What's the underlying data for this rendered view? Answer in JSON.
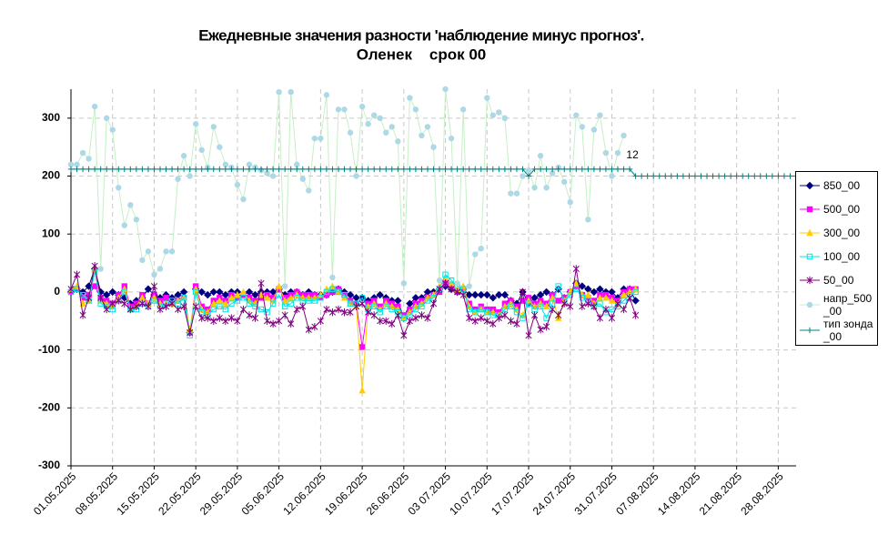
{
  "chart_data": {
    "type": "line",
    "title": "Ежедневные значения разности 'наблюдение минус прогноз'.",
    "subtitle": "Оленек    срок 00",
    "annotation": "12",
    "categories": [
      "01.05.2025",
      null,
      null,
      null,
      null,
      null,
      null,
      "08.05.2025",
      null,
      null,
      null,
      null,
      null,
      null,
      "15.05.2025",
      null,
      null,
      null,
      null,
      null,
      null,
      "22.05.2025",
      null,
      null,
      null,
      null,
      null,
      null,
      "29.05.2025",
      null,
      null,
      null,
      null,
      null,
      null,
      "05.06.2025",
      null,
      null,
      null,
      null,
      null,
      null,
      "12.06.2025",
      null,
      null,
      null,
      null,
      null,
      null,
      "19.06.2025",
      null,
      null,
      null,
      null,
      null,
      null,
      "26.06.2025",
      null,
      null,
      null,
      null,
      null,
      null,
      "03 07.2025",
      null,
      null,
      null,
      null,
      null,
      null,
      "10.07.2025",
      null,
      null,
      null,
      null,
      null,
      null,
      "17.07.2025",
      null,
      null,
      null,
      null,
      null,
      null,
      "24.07.2025",
      null,
      null,
      null,
      null,
      null,
      null,
      "31.07.2025",
      null,
      null,
      null,
      null,
      null,
      null,
      "07.08.2025",
      null,
      null,
      null,
      null,
      null,
      null,
      "14.08.2025",
      null,
      null,
      null,
      null,
      null,
      null,
      "21.08.2025",
      null,
      null,
      null,
      null,
      null,
      null,
      "28.08.2025",
      null,
      null,
      null
    ],
    "ylim": [
      -300,
      350
    ],
    "yticks": [
      -300,
      -200,
      -100,
      0,
      100,
      200,
      300
    ],
    "grid": true,
    "series": [
      {
        "name": "850_00",
        "color": "#000080",
        "marker": "diamond",
        "values": [
          0,
          5,
          0,
          10,
          40,
          0,
          -5,
          0,
          -5,
          -10,
          -20,
          -15,
          -10,
          5,
          -5,
          -10,
          -5,
          -10,
          -5,
          0,
          -70,
          5,
          0,
          -5,
          0,
          0,
          -5,
          0,
          0,
          -5,
          0,
          -5,
          0,
          0,
          0,
          5,
          -5,
          0,
          0,
          -5,
          0,
          -5,
          -5,
          -5,
          0,
          5,
          0,
          -5,
          -10,
          -10,
          -15,
          -10,
          -5,
          -10,
          -15,
          -15,
          -45,
          -20,
          -10,
          -10,
          0,
          0,
          5,
          10,
          5,
          0,
          5,
          -5,
          -5,
          -5,
          -5,
          -10,
          -5,
          -5,
          -15,
          -20,
          0,
          -20,
          -10,
          -5,
          0,
          -5,
          5,
          -10,
          0,
          15,
          10,
          5,
          0,
          5,
          0,
          0,
          -10,
          5,
          5,
          -15,
          null,
          null,
          null,
          null,
          null,
          null,
          null,
          null,
          null,
          null,
          null,
          null,
          null,
          null,
          null,
          null,
          null,
          null,
          null,
          null,
          null,
          null,
          null,
          null,
          null,
          null,
          null
        ]
      },
      {
        "name": "500_00",
        "color": "#ff00ff",
        "marker": "square",
        "values": [
          0,
          5,
          -10,
          -5,
          10,
          -10,
          -15,
          -20,
          -5,
          10,
          -25,
          -20,
          -5,
          -20,
          -5,
          -15,
          -10,
          -20,
          -15,
          -10,
          -70,
          10,
          -25,
          -30,
          -15,
          -10,
          -15,
          -5,
          -10,
          -5,
          -10,
          -15,
          -10,
          -5,
          -10,
          5,
          -10,
          -5,
          0,
          -5,
          -5,
          -5,
          -10,
          -5,
          0,
          5,
          -5,
          -15,
          -20,
          -95,
          -20,
          -15,
          -25,
          -15,
          -20,
          -25,
          -40,
          -30,
          -20,
          -15,
          -10,
          -5,
          0,
          15,
          10,
          0,
          5,
          -20,
          -30,
          -25,
          -30,
          -30,
          -35,
          -20,
          -15,
          -25,
          -15,
          -10,
          -20,
          -15,
          -20,
          -5,
          -15,
          -10,
          0,
          10,
          -5,
          -10,
          -15,
          -5,
          -5,
          -10,
          -15,
          0,
          5,
          5,
          null,
          null,
          null,
          null,
          null,
          null,
          null,
          null,
          null,
          null,
          null,
          null,
          null,
          null,
          null,
          null,
          null,
          null,
          null,
          null,
          null,
          null,
          null,
          null,
          null,
          null,
          null
        ]
      },
      {
        "name": "300_00",
        "color": "#ffcc00",
        "marker": "triangle",
        "values": [
          5,
          10,
          -20,
          -15,
          40,
          -15,
          -20,
          -25,
          -10,
          5,
          -30,
          -25,
          -10,
          -20,
          -10,
          -20,
          -20,
          -20,
          -15,
          -10,
          -65,
          5,
          -30,
          -35,
          -20,
          -15,
          -20,
          -10,
          -5,
          0,
          -15,
          -20,
          -5,
          -10,
          -15,
          10,
          -15,
          -10,
          -5,
          -10,
          -10,
          -10,
          -5,
          5,
          10,
          0,
          -10,
          -20,
          -25,
          -170,
          -25,
          -20,
          -30,
          -20,
          -25,
          -30,
          -45,
          -35,
          -25,
          -20,
          -10,
          -5,
          10,
          25,
          15,
          5,
          10,
          -25,
          -35,
          -30,
          -35,
          -35,
          -40,
          -25,
          -20,
          -30,
          -40,
          -15,
          -25,
          -20,
          -25,
          -10,
          -45,
          -15,
          0,
          15,
          -5,
          -5,
          -20,
          -10,
          -10,
          -15,
          -20,
          -5,
          0,
          5,
          null,
          null,
          null,
          null,
          null,
          null,
          null,
          null,
          null,
          null,
          null,
          null,
          null,
          null,
          null,
          null,
          null,
          null,
          null,
          null,
          null,
          null,
          null,
          null,
          null,
          null,
          null
        ]
      },
      {
        "name": "100_00",
        "color": "#00e5e5",
        "marker": "osquare",
        "values": [
          0,
          5,
          -5,
          -15,
          35,
          -20,
          -25,
          -30,
          -15,
          0,
          -30,
          -30,
          -20,
          -25,
          -15,
          -25,
          -20,
          -15,
          -20,
          -10,
          -75,
          0,
          -35,
          -40,
          -30,
          -25,
          -30,
          -20,
          -15,
          -10,
          -20,
          -25,
          -30,
          -35,
          -20,
          -5,
          -25,
          -20,
          -10,
          -15,
          -15,
          -15,
          -10,
          0,
          5,
          0,
          -5,
          -20,
          -20,
          -10,
          -30,
          -25,
          -35,
          -25,
          -30,
          -35,
          -45,
          -40,
          -30,
          -25,
          -15,
          -10,
          5,
          30,
          20,
          10,
          5,
          -30,
          -35,
          -30,
          -35,
          -40,
          -40,
          -30,
          -25,
          -35,
          -45,
          -20,
          -30,
          -25,
          -45,
          -20,
          10,
          -15,
          -5,
          5,
          -10,
          -15,
          -25,
          -20,
          -35,
          -30,
          -25,
          -15,
          -5,
          0,
          null,
          null,
          null,
          null,
          null,
          null,
          null,
          null,
          null,
          null,
          null,
          null,
          null,
          null,
          null,
          null,
          null,
          null,
          null,
          null,
          null,
          null,
          null,
          null,
          null,
          null,
          null
        ]
      },
      {
        "name": "50_00",
        "color": "#800080",
        "marker": "star",
        "values": [
          5,
          30,
          -40,
          -10,
          45,
          -10,
          -30,
          -20,
          -15,
          -20,
          -30,
          -25,
          -20,
          -25,
          10,
          -30,
          -25,
          -20,
          -30,
          -25,
          -70,
          -25,
          -45,
          -45,
          -50,
          -45,
          -50,
          -45,
          -50,
          -30,
          -40,
          -45,
          15,
          -50,
          -55,
          -50,
          -40,
          -55,
          -30,
          -25,
          -65,
          -60,
          -50,
          -30,
          -35,
          -30,
          -35,
          -35,
          -25,
          -20,
          -35,
          -40,
          -50,
          -50,
          -55,
          -40,
          -75,
          -50,
          -45,
          -40,
          -45,
          -20,
          5,
          15,
          5,
          0,
          -5,
          -45,
          -50,
          -45,
          -50,
          -55,
          -45,
          -40,
          -50,
          -55,
          0,
          -75,
          -40,
          -65,
          -60,
          -30,
          -40,
          -20,
          -25,
          40,
          -25,
          -20,
          -25,
          -45,
          -30,
          -45,
          -20,
          -30,
          -10,
          -40,
          null,
          null,
          null,
          null,
          null,
          null,
          null,
          null,
          null,
          null,
          null,
          null,
          null,
          null,
          null,
          null,
          null,
          null,
          null,
          null,
          null,
          null,
          null,
          null,
          null,
          null,
          null
        ]
      },
      {
        "name": "напр_500_00",
        "color": "#add8e6",
        "line_color": "#c6efc6",
        "marker": "circle",
        "values": [
          220,
          220,
          240,
          230,
          320,
          40,
          300,
          280,
          180,
          115,
          150,
          125,
          55,
          70,
          30,
          40,
          70,
          70,
          195,
          235,
          200,
          290,
          245,
          215,
          285,
          250,
          220,
          215,
          185,
          160,
          220,
          215,
          210,
          205,
          200,
          345,
          10,
          345,
          220,
          195,
          175,
          265,
          265,
          340,
          25,
          315,
          315,
          275,
          200,
          320,
          290,
          305,
          300,
          275,
          285,
          260,
          15,
          335,
          315,
          270,
          285,
          250,
          20,
          350,
          265,
          15,
          315,
          10,
          65,
          75,
          335,
          305,
          310,
          300,
          170,
          170,
          200,
          210,
          180,
          235,
          180,
          205,
          215,
          190,
          155,
          305,
          285,
          125,
          280,
          305,
          240,
          200,
          240,
          270,
          null,
          null,
          null,
          null,
          null,
          null,
          null,
          null,
          null,
          null,
          null,
          null,
          null,
          null,
          null,
          null,
          null,
          null,
          null,
          null,
          null,
          null,
          null,
          null,
          null,
          null,
          null,
          null,
          null
        ]
      },
      {
        "name": "тип зонда_00",
        "color": "#008080",
        "marker": "plus",
        "values": [
          212,
          212,
          212,
          212,
          212,
          212,
          212,
          212,
          212,
          212,
          212,
          212,
          212,
          212,
          212,
          212,
          212,
          212,
          212,
          212,
          212,
          212,
          212,
          212,
          212,
          212,
          212,
          212,
          212,
          212,
          212,
          212,
          212,
          212,
          212,
          212,
          212,
          212,
          212,
          212,
          212,
          212,
          212,
          212,
          212,
          212,
          212,
          212,
          212,
          212,
          212,
          212,
          212,
          212,
          212,
          212,
          212,
          212,
          212,
          212,
          212,
          212,
          212,
          212,
          212,
          212,
          212,
          212,
          212,
          212,
          212,
          212,
          212,
          212,
          212,
          212,
          212,
          200,
          212,
          212,
          212,
          212,
          212,
          212,
          212,
          212,
          212,
          212,
          212,
          212,
          212,
          212,
          212,
          212,
          212,
          200,
          200,
          200,
          200,
          200,
          200,
          200,
          200,
          200,
          200,
          200,
          200,
          200,
          200,
          200,
          200,
          200,
          200,
          200,
          200,
          200,
          200,
          200,
          200,
          200,
          200,
          200,
          200
        ]
      }
    ]
  }
}
